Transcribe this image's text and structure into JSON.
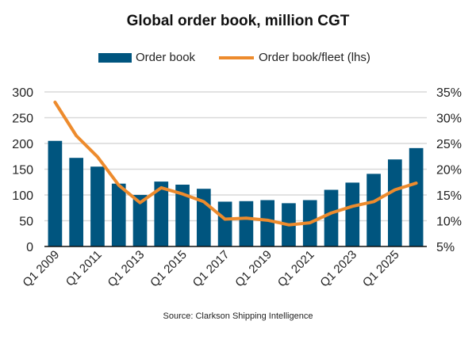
{
  "chart_data": {
    "type": "bar+line",
    "title": "Global order book, million CGT",
    "categories": [
      "Q1 2009",
      "Q1 2010",
      "Q1 2011",
      "Q1 2012",
      "Q1 2013",
      "Q1 2014",
      "Q1 2015",
      "Q1 2016",
      "Q1 2017",
      "Q1 2018",
      "Q1 2019",
      "Q1 2020",
      "Q1 2021",
      "Q1 2022",
      "Q1 2023",
      "Q1 2024",
      "Q1 2025",
      "Q1 2026"
    ],
    "x_tick_labels": [
      "Q1 2009",
      "Q1 2011",
      "Q1 2013",
      "Q1 2015",
      "Q1 2017",
      "Q1 2019",
      "Q1 2021",
      "Q1 2023",
      "Q1 2025"
    ],
    "series": [
      {
        "name": "Order book",
        "type": "bar",
        "axis": "left",
        "color": "#00557f",
        "values": [
          205,
          172,
          155,
          122,
          100,
          126,
          120,
          112,
          87,
          88,
          90,
          84,
          90,
          110,
          124,
          141,
          169,
          191
        ]
      },
      {
        "name": "Order book/fleet (lhs)",
        "type": "line",
        "axis": "right",
        "color": "#ed8b2d",
        "values": [
          33.0,
          26.5,
          22.4,
          16.9,
          13.5,
          16.4,
          15.2,
          13.7,
          10.3,
          10.5,
          10.1,
          9.2,
          9.6,
          11.5,
          12.8,
          13.7,
          16.0,
          17.3
        ]
      }
    ],
    "y_left": {
      "lim": [
        0,
        300
      ],
      "ticks": [
        "0",
        "50",
        "100",
        "150",
        "200",
        "250",
        "300"
      ]
    },
    "y_right": {
      "lim": [
        5,
        35
      ],
      "ticks": [
        "5%",
        "10%",
        "15%",
        "20%",
        "25%",
        "30%",
        "35%"
      ]
    },
    "grid": true,
    "legend_position": "top",
    "source": "Source: Clarkson Shipping Intelligence"
  }
}
